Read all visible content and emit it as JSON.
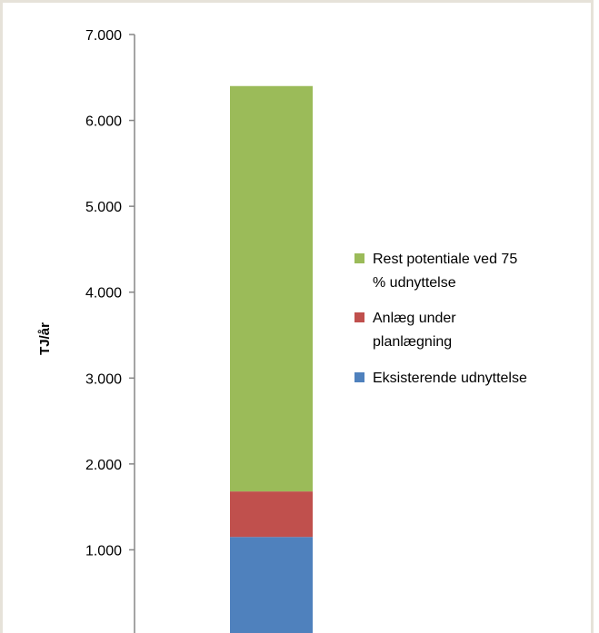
{
  "chart_data": {
    "type": "bar",
    "stacked": true,
    "categories": [
      ""
    ],
    "series": [
      {
        "name": "Eksisterende udnyttelse",
        "color": "#4f81bd",
        "values": [
          1150
        ]
      },
      {
        "name": "Anlæg under planlægning",
        "color": "#c0504d",
        "values": [
          530
        ]
      },
      {
        "name": "Rest potentiale ved 75 % udnyttelse",
        "color": "#9bbb59",
        "values": [
          4720
        ]
      }
    ],
    "legend_lines": [
      [
        "Rest potentiale ved 75",
        "% udnyttelse"
      ],
      [
        "Anlæg under",
        "planlægning"
      ],
      [
        "Eksisterende udnyttelse"
      ]
    ],
    "ylabel": "TJ/år",
    "xlabel": "",
    "title": "",
    "yticks": [
      "1.000",
      "2.000",
      "3.000",
      "4.000",
      "5.000",
      "6.000",
      "7.000"
    ],
    "ytick_values": [
      1000,
      2000,
      3000,
      4000,
      5000,
      6000,
      7000
    ],
    "ylim": [
      0,
      7000
    ],
    "grid": false,
    "legend_position": "right"
  }
}
